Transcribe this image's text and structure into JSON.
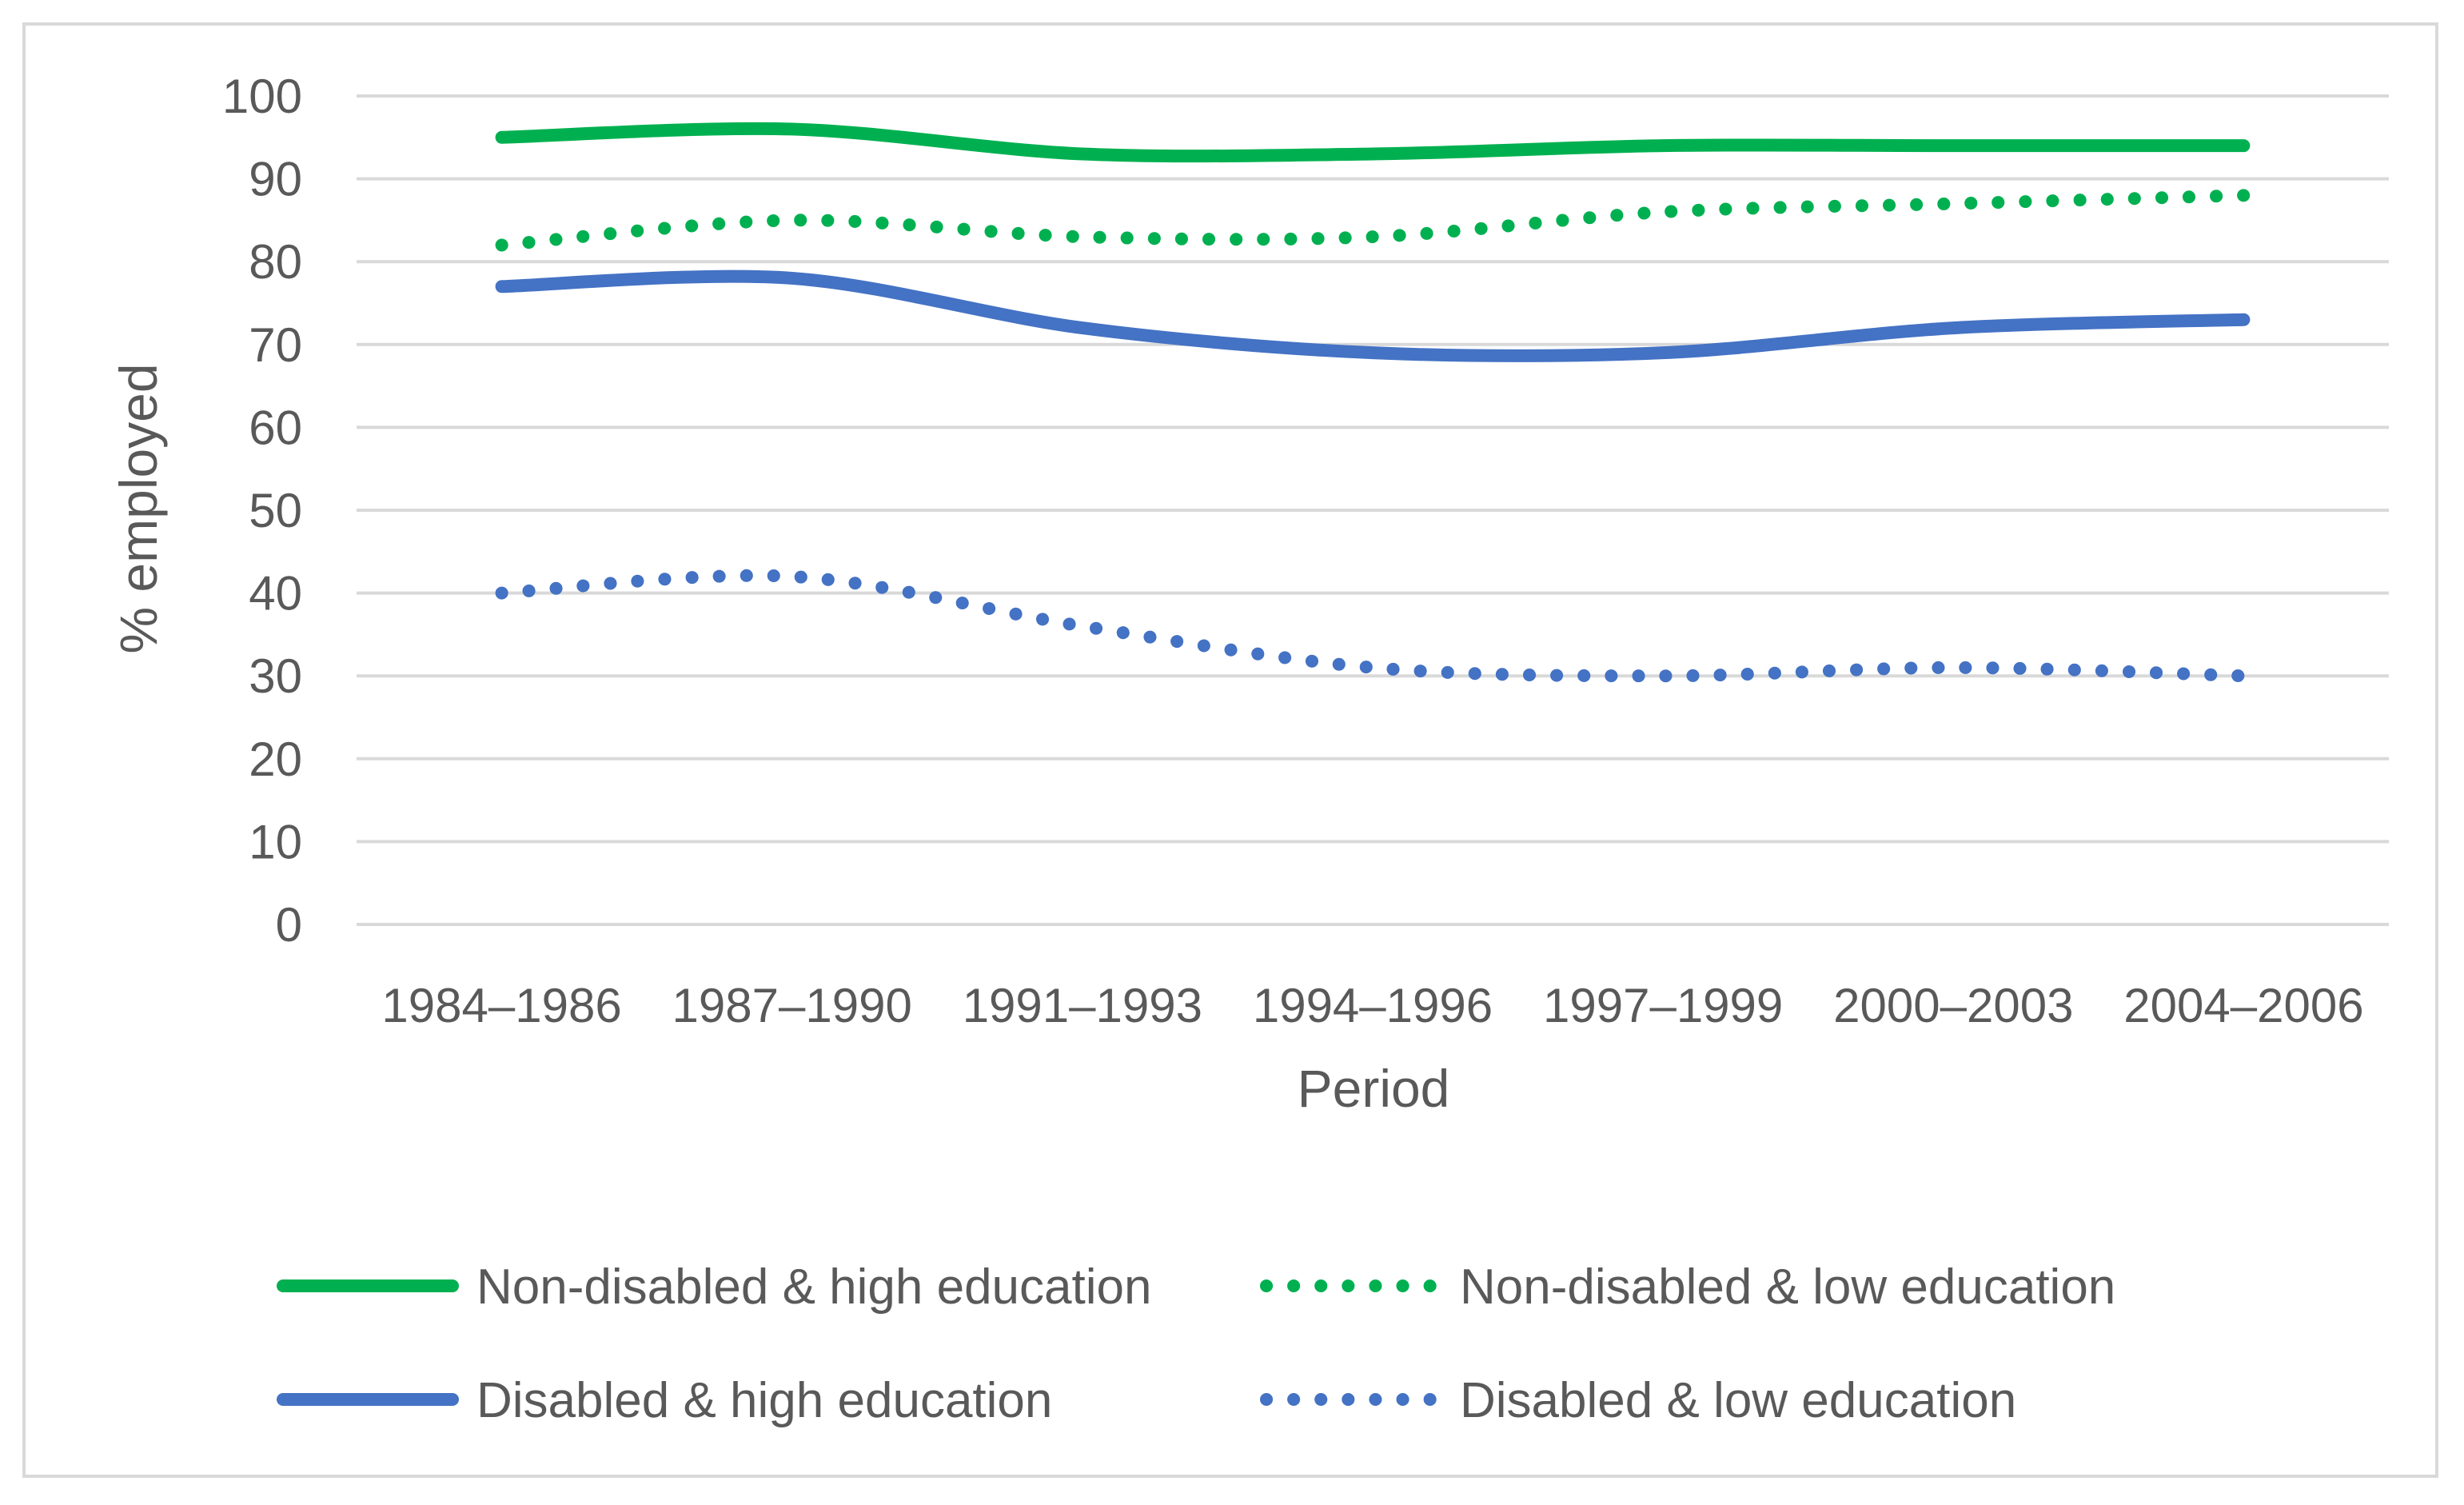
{
  "chart_data": {
    "type": "line",
    "title": "",
    "xlabel": "Period",
    "ylabel": "% employed",
    "ylim": [
      0,
      100
    ],
    "yticks": [
      0,
      10,
      20,
      30,
      40,
      50,
      60,
      70,
      80,
      90,
      100
    ],
    "categories": [
      "1984–1986",
      "1987–1990",
      "1991–1993",
      "1994–1996",
      "1997–1999",
      "2000–2003",
      "2004–2006"
    ],
    "grid": "horizontal",
    "legend_position": "bottom",
    "series": [
      {
        "name": "Non-disabled & high education",
        "values": [
          95,
          96,
          93,
          93,
          94,
          94,
          94
        ],
        "color": "#00b050",
        "style": "solid"
      },
      {
        "name": "Non-disabled & low education",
        "values": [
          82,
          85,
          83,
          83,
          86,
          87,
          88
        ],
        "color": "#00b050",
        "style": "dotted"
      },
      {
        "name": "Disabled & high education",
        "values": [
          77,
          78,
          72,
          69,
          69,
          72,
          73
        ],
        "color": "#4472c4",
        "style": "solid"
      },
      {
        "name": "Disabled & low education",
        "values": [
          40,
          42,
          36,
          31,
          30,
          31,
          30
        ],
        "color": "#4472c4",
        "style": "dotted"
      }
    ]
  }
}
